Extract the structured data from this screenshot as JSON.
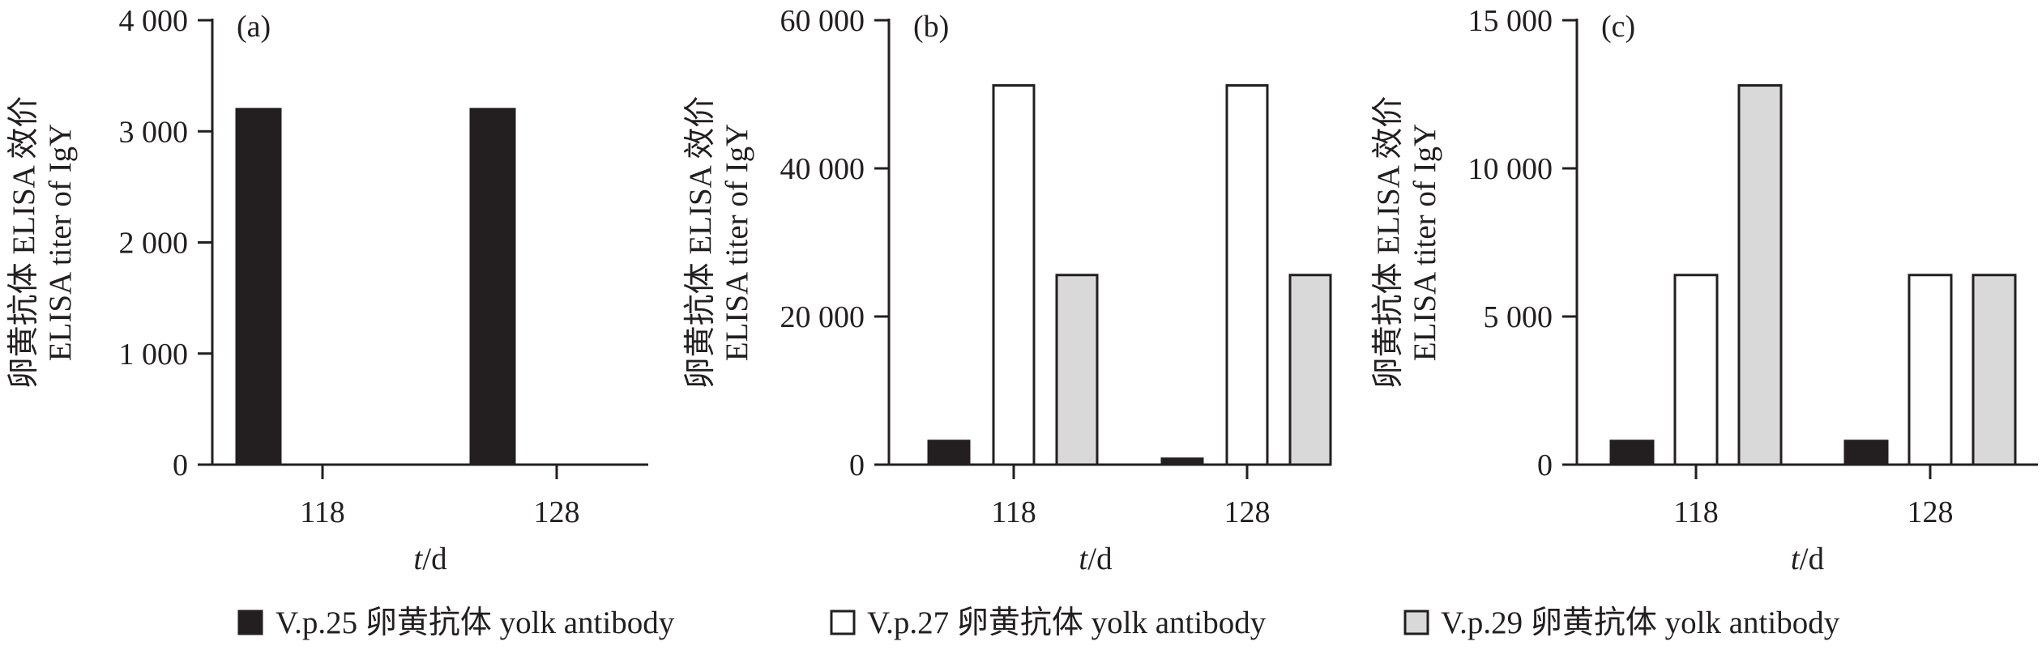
{
  "colors": {
    "V.p.25": "#231f20",
    "V.p.27": "#ffffff",
    "V.p.29": "#d9d9d9",
    "stroke": "#231f20"
  },
  "legend": {
    "placement": "bottom",
    "items": [
      {
        "series": "V.p.25",
        "label": "V.p.25 卵黄抗体 yolk antibody"
      },
      {
        "series": "V.p.27",
        "label": "V.p.27 卵黄抗体 yolk antibody"
      },
      {
        "series": "V.p.29",
        "label": "V.p.29 卵黄抗体 yolk antibody"
      }
    ]
  },
  "chart_data": [
    {
      "type": "bar",
      "panel": "(a)",
      "categories": [
        "118",
        "128"
      ],
      "ylim": [
        0,
        4000
      ],
      "yticks": [
        0,
        1000,
        2000,
        3000,
        4000
      ],
      "ytick_labels": [
        "0",
        "1 000",
        "2 000",
        "3 000",
        "4 000"
      ],
      "ylabel_line1": "卵黄抗体 ELISA 效价",
      "ylabel_line2": "ELISA titer of IgY",
      "xlabel_italic": "t",
      "xlabel_rest": "/d",
      "grid": false,
      "series": [
        {
          "name": "V.p.25",
          "values": [
            3200,
            3200
          ]
        },
        {
          "name": "V.p.27",
          "values": [
            0,
            0
          ]
        },
        {
          "name": "V.p.29",
          "values": [
            0,
            0
          ]
        }
      ]
    },
    {
      "type": "bar",
      "panel": "(b)",
      "categories": [
        "118",
        "128"
      ],
      "ylim": [
        0,
        60000
      ],
      "yticks": [
        0,
        20000,
        40000,
        60000
      ],
      "ytick_labels": [
        "0",
        "20 000",
        "40 000",
        "60 000"
      ],
      "ylabel_line1": "卵黄抗体 ELISA 效价",
      "ylabel_line2": "ELISA titer of IgY",
      "xlabel_italic": "t",
      "xlabel_rest": "/d",
      "grid": false,
      "series": [
        {
          "name": "V.p.25",
          "values": [
            3200,
            800
          ]
        },
        {
          "name": "V.p.27",
          "values": [
            51200,
            51200
          ]
        },
        {
          "name": "V.p.29",
          "values": [
            25600,
            25600
          ]
        }
      ]
    },
    {
      "type": "bar",
      "panel": "(c)",
      "categories": [
        "118",
        "128"
      ],
      "ylim": [
        0,
        15000
      ],
      "yticks": [
        0,
        5000,
        10000,
        15000
      ],
      "ytick_labels": [
        "0",
        "5 000",
        "10 000",
        "15 000"
      ],
      "ylabel_line1": "卵黄抗体 ELISA 效价",
      "ylabel_line2": "ELISA titer of IgY",
      "xlabel_italic": "t",
      "xlabel_rest": "/d",
      "grid": false,
      "series": [
        {
          "name": "V.p.25",
          "values": [
            800,
            800
          ]
        },
        {
          "name": "V.p.27",
          "values": [
            6400,
            6400
          ]
        },
        {
          "name": "V.p.29",
          "values": [
            12800,
            6400
          ]
        }
      ]
    }
  ]
}
